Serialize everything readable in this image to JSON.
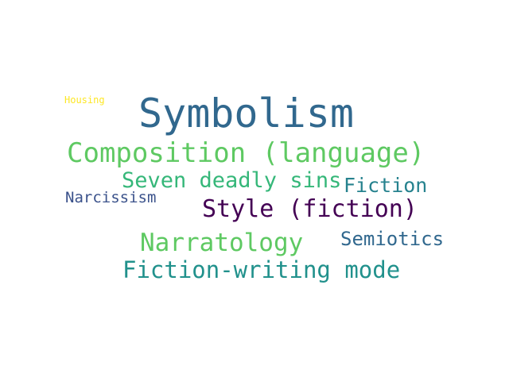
{
  "words": [
    {
      "text": "Housing",
      "color": "#fde725"
    },
    {
      "text": "Symbolism",
      "color": "#31688e"
    },
    {
      "text": "Composition (language)",
      "color": "#5ec962"
    },
    {
      "text": "Seven deadly sins",
      "color": "#35b779"
    },
    {
      "text": "Fiction",
      "color": "#26828e"
    },
    {
      "text": "Narcissism",
      "color": "#3b528b"
    },
    {
      "text": "Style (fiction)",
      "color": "#440154"
    },
    {
      "text": "Semiotics",
      "color": "#31688e"
    },
    {
      "text": "Narratology",
      "color": "#5ec962"
    },
    {
      "text": "Fiction-writing mode",
      "color": "#21918c"
    }
  ]
}
